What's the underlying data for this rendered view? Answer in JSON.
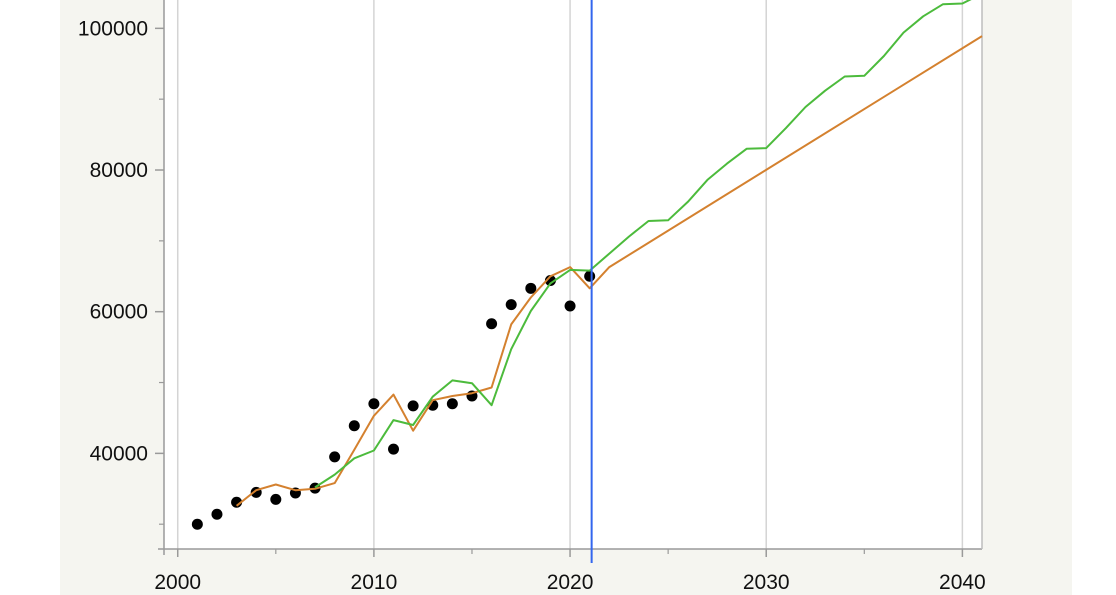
{
  "chart_data": {
    "type": "line",
    "title": "",
    "xlabel": "",
    "ylabel": "",
    "xlim": [
      1999.3,
      2041
    ],
    "ylim": [
      26500,
      104000
    ],
    "x_ticks": [
      2000,
      2010,
      2020,
      2030,
      2040
    ],
    "y_ticks": [
      40000,
      60000,
      80000,
      100000
    ],
    "x_tick_labels": [
      "2000",
      "2010",
      "2020",
      "2030",
      "2040"
    ],
    "y_tick_labels": [
      "40000",
      "60000",
      "80000",
      "100000"
    ],
    "grid": "vertical",
    "legend": "none",
    "reference_line": {
      "x": 2021.1,
      "color": "#3366ee"
    },
    "series": [
      {
        "kind": "scatter",
        "color": "#000000",
        "points": [
          [
            2001,
            30000
          ],
          [
            2002,
            31400
          ],
          [
            2003,
            33100
          ],
          [
            2004,
            34500
          ],
          [
            2005,
            33500
          ],
          [
            2006,
            34400
          ],
          [
            2007,
            35100
          ],
          [
            2008,
            39500
          ],
          [
            2009,
            43900
          ],
          [
            2010,
            47000
          ],
          [
            2011,
            40600
          ],
          [
            2012,
            46700
          ],
          [
            2013,
            46800
          ],
          [
            2014,
            47000
          ],
          [
            2015,
            48100
          ],
          [
            2016,
            58300
          ],
          [
            2017,
            61000
          ],
          [
            2018,
            63300
          ],
          [
            2019,
            64400
          ],
          [
            2020,
            60800
          ],
          [
            2021,
            65000
          ]
        ]
      },
      {
        "kind": "line",
        "color": "#d4812f",
        "points": [
          [
            2003,
            32600
          ],
          [
            2004,
            34800
          ],
          [
            2005,
            35600
          ],
          [
            2006,
            34800
          ],
          [
            2007,
            35000
          ],
          [
            2008,
            35800
          ],
          [
            2009,
            40500
          ],
          [
            2010,
            45300
          ],
          [
            2011,
            48300
          ],
          [
            2012,
            43200
          ],
          [
            2013,
            47500
          ],
          [
            2014,
            48100
          ],
          [
            2015,
            48500
          ],
          [
            2016,
            49300
          ],
          [
            2017,
            58200
          ],
          [
            2018,
            62000
          ],
          [
            2019,
            65000
          ],
          [
            2020,
            66300
          ],
          [
            2021,
            63300
          ],
          [
            2022,
            66300
          ],
          [
            2041,
            98900
          ]
        ]
      },
      {
        "kind": "line",
        "color": "#4cbb3c",
        "points": [
          [
            2007,
            35200
          ],
          [
            2008,
            37000
          ],
          [
            2009,
            39300
          ],
          [
            2010,
            40400
          ],
          [
            2011,
            44700
          ],
          [
            2012,
            44000
          ],
          [
            2013,
            48000
          ],
          [
            2014,
            50300
          ],
          [
            2015,
            49900
          ],
          [
            2016,
            46800
          ],
          [
            2017,
            54700
          ],
          [
            2018,
            60100
          ],
          [
            2019,
            64000
          ],
          [
            2020,
            65900
          ],
          [
            2021,
            65800
          ],
          [
            2022,
            68200
          ],
          [
            2023,
            70600
          ],
          [
            2024,
            72800
          ],
          [
            2025,
            72900
          ],
          [
            2026,
            75500
          ],
          [
            2027,
            78600
          ],
          [
            2028,
            80900
          ],
          [
            2029,
            83000
          ],
          [
            2030,
            83100
          ],
          [
            2031,
            85900
          ],
          [
            2032,
            88900
          ],
          [
            2033,
            91200
          ],
          [
            2034,
            93200
          ],
          [
            2035,
            93300
          ],
          [
            2036,
            96100
          ],
          [
            2037,
            99400
          ],
          [
            2038,
            101700
          ],
          [
            2039,
            103400
          ],
          [
            2040,
            103500
          ],
          [
            2040.5,
            104200
          ]
        ]
      }
    ]
  }
}
